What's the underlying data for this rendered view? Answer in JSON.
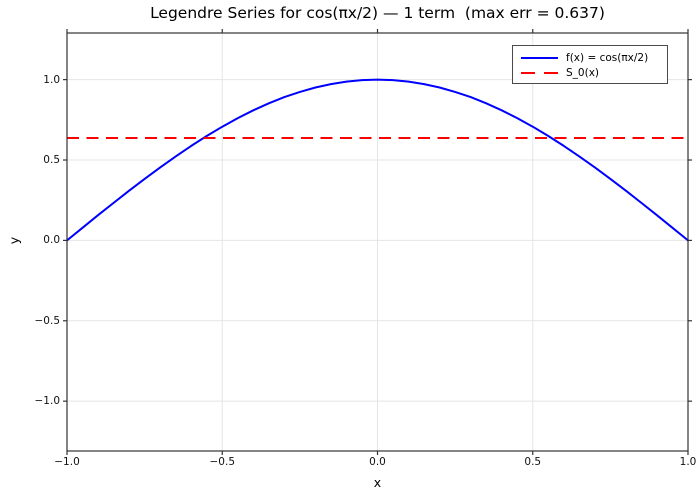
{
  "chart_data": {
    "type": "line",
    "title": "Legendre Series for cos(πx/2) — 1 term  (max err = 0.637)",
    "xlabel": "x",
    "ylabel": "y",
    "xlim": [
      -1,
      1
    ],
    "ylim": [
      -1.31,
      1.29
    ],
    "grid": true,
    "legend_position": "upper right",
    "x_ticks": {
      "values": [
        -1,
        -0.5,
        0,
        0.5,
        1
      ],
      "labels": [
        "−1.0",
        "−0.5",
        "0.0",
        "0.5",
        "1.0"
      ]
    },
    "y_ticks": {
      "values": [
        -1,
        -0.5,
        0,
        0.5,
        1
      ],
      "labels": [
        "−1.0",
        "−0.5",
        "0.0",
        "0.5",
        "1.0"
      ]
    },
    "series": [
      {
        "name": "f(x) = cos(πx/2)",
        "color": "#0000ff",
        "style": "solid",
        "line_width": 2,
        "x": [
          -1,
          -0.95,
          -0.9,
          -0.85,
          -0.8,
          -0.75,
          -0.7,
          -0.65,
          -0.6,
          -0.55,
          -0.5,
          -0.45,
          -0.4,
          -0.35,
          -0.3,
          -0.25,
          -0.2,
          -0.15,
          -0.1,
          -0.05,
          0,
          0.05,
          0.1,
          0.15,
          0.2,
          0.25,
          0.3,
          0.35,
          0.4,
          0.45,
          0.5,
          0.55,
          0.6,
          0.65,
          0.7,
          0.75,
          0.8,
          0.85,
          0.9,
          0.95,
          1
        ],
        "y": [
          0,
          0.0785,
          0.1564,
          0.2334,
          0.309,
          0.3827,
          0.454,
          0.5225,
          0.5878,
          0.6494,
          0.7071,
          0.7604,
          0.809,
          0.8526,
          0.891,
          0.9239,
          0.9511,
          0.9724,
          0.9877,
          0.9969,
          1,
          0.9969,
          0.9877,
          0.9724,
          0.9511,
          0.9239,
          0.891,
          0.8526,
          0.809,
          0.7604,
          0.7071,
          0.6494,
          0.5878,
          0.5225,
          0.454,
          0.3827,
          0.309,
          0.2334,
          0.1564,
          0.0785,
          0
        ]
      },
      {
        "name": "S_0(x)",
        "color": "#ff0000",
        "style": "dashed",
        "line_width": 2,
        "x": [
          -1,
          1
        ],
        "y": [
          0.6366,
          0.6366
        ]
      }
    ]
  },
  "colors": {
    "grid": "#e5e5e5",
    "spine": "#333333",
    "tick": "#333333",
    "text": "#000000",
    "blue": "#0000ff",
    "red": "#ff0000",
    "legend_border": "#4a4a4a"
  }
}
